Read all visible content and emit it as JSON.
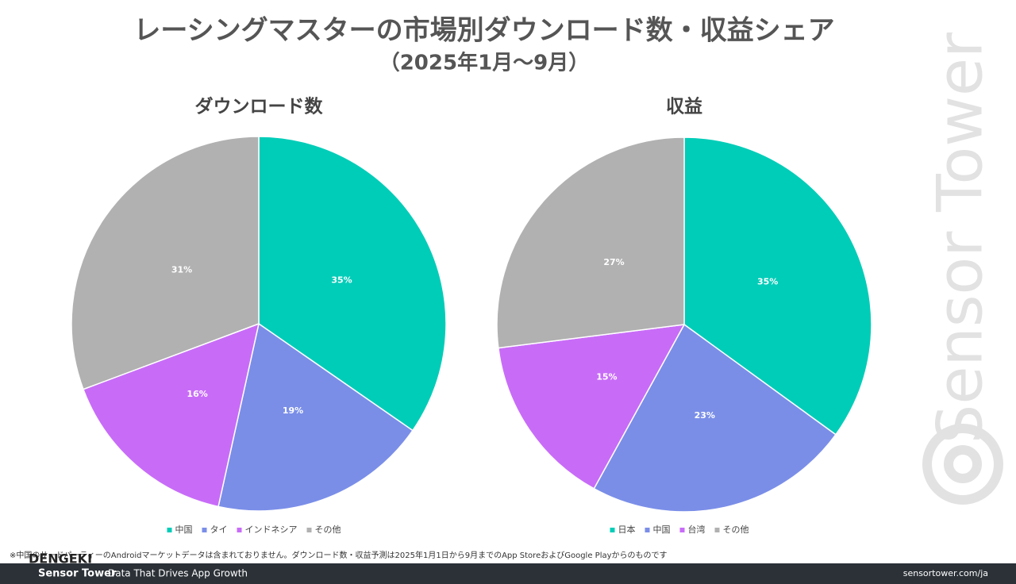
{
  "title": "レーシングマスターの市場別ダウンロード数・収益シェア",
  "subtitle": "（2025年1月～9月）",
  "watermark": "Sensor Tower",
  "overlay_logo": "DENGEKI",
  "footnote": "※中国のサードパーティーのAndroidマーケットデータは含まれておりません。ダウンロード数・収益予測は2025年1月1日から9月までのApp StoreおよびGoogle Playからのものです",
  "footer": {
    "brand": "Sensor Tower",
    "tagline": "Data That Drives App Growth",
    "url": "sensortower.com/ja"
  },
  "chart_data": [
    {
      "type": "pie",
      "title": "ダウンロード数",
      "categories": [
        "中国",
        "タイ",
        "インドネシア",
        "その他"
      ],
      "values": [
        35,
        19,
        16,
        31
      ],
      "value_labels": [
        "35%",
        "19%",
        "16%",
        "31%"
      ],
      "colors": [
        "#00cdb8",
        "#7a8ee8",
        "#c86cf8",
        "#b1b1b1"
      ]
    },
    {
      "type": "pie",
      "title": "収益",
      "categories": [
        "日本",
        "中国",
        "台湾",
        "その他"
      ],
      "values": [
        35,
        23,
        15,
        27
      ],
      "value_labels": [
        "35%",
        "23%",
        "15%",
        "27%"
      ],
      "colors": [
        "#00cdb8",
        "#7a8ee8",
        "#c86cf8",
        "#b1b1b1"
      ]
    }
  ]
}
